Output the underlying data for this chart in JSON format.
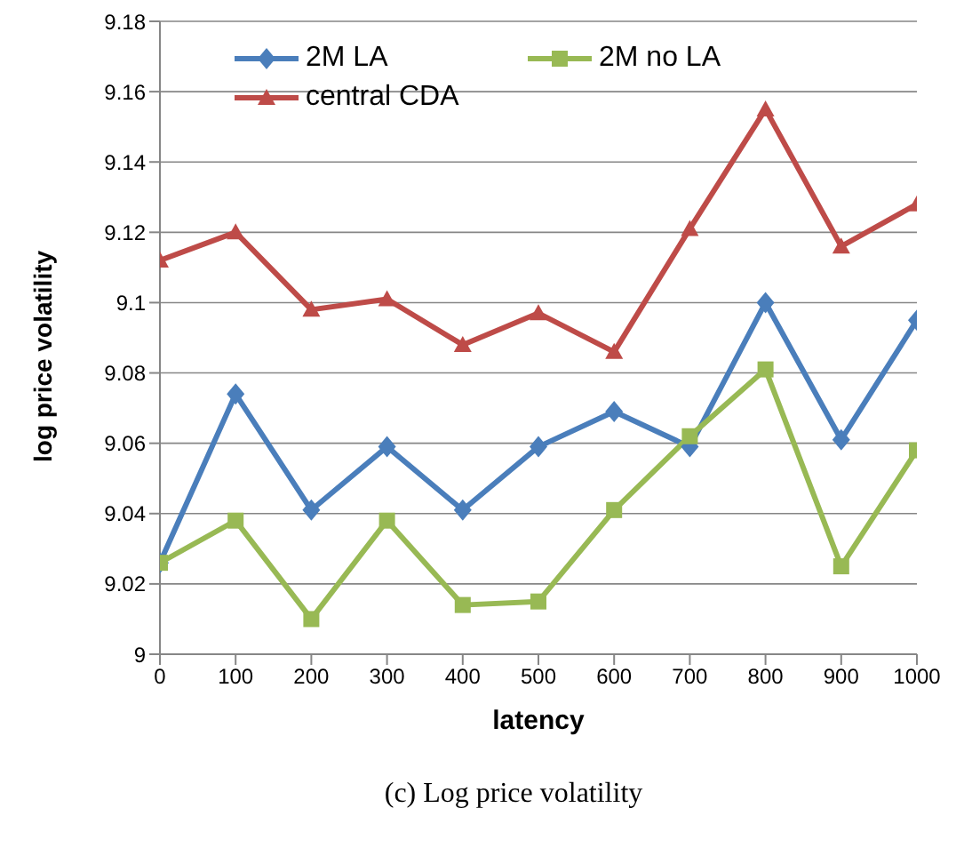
{
  "chart_data": {
    "type": "line",
    "xlabel": "latency",
    "ylabel": "log price volatility",
    "x": [
      0,
      100,
      200,
      300,
      400,
      500,
      600,
      700,
      800,
      900,
      1000
    ],
    "series": [
      {
        "name": "2M LA",
        "color": "#4a7ebb",
        "marker": "diamond",
        "values": [
          9.026,
          9.074,
          9.041,
          9.059,
          9.041,
          9.059,
          9.069,
          9.059,
          9.1,
          9.061,
          9.095
        ]
      },
      {
        "name": "2M no LA",
        "color": "#98b954",
        "marker": "square",
        "values": [
          9.026,
          9.038,
          9.01,
          9.038,
          9.014,
          9.015,
          9.041,
          9.062,
          9.081,
          9.025,
          9.058
        ]
      },
      {
        "name": "central CDA",
        "color": "#be4b48",
        "marker": "triangle",
        "values": [
          9.112,
          9.12,
          9.098,
          9.101,
          9.088,
          9.097,
          9.086,
          9.121,
          9.155,
          9.116,
          9.128
        ]
      }
    ],
    "xlim": [
      0,
      1000
    ],
    "xticks": [
      0,
      100,
      200,
      300,
      400,
      500,
      600,
      700,
      800,
      900,
      1000
    ],
    "ylim": [
      9,
      9.18
    ],
    "yticks": [
      9,
      9.02,
      9.04,
      9.06,
      9.08,
      9.1,
      9.12,
      9.14,
      9.16,
      9.18
    ],
    "grid": "y",
    "legend": "top left",
    "line_style": "solid",
    "annotations": [
      "(c) Log price volatility"
    ]
  }
}
